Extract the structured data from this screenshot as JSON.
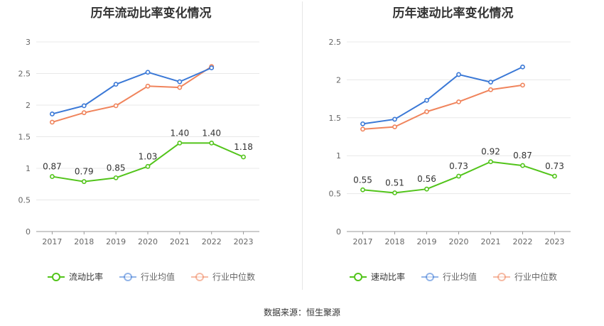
{
  "chart_data": [
    {
      "type": "line",
      "title": "历年流动比率变化情况",
      "categories": [
        "2017",
        "2018",
        "2019",
        "2020",
        "2021",
        "2022",
        "2023"
      ],
      "ylim": [
        0,
        3
      ],
      "yticks": [
        "0",
        "0.5",
        "1",
        "1.5",
        "2",
        "2.5",
        "3"
      ],
      "grid": true,
      "legend_position": "bottom",
      "series": [
        {
          "name": "流动比率",
          "color": "#52c41a",
          "values": [
            0.87,
            0.79,
            0.85,
            1.03,
            1.4,
            1.4,
            1.18
          ],
          "labels": [
            "0.87",
            "0.79",
            "0.85",
            "1.03",
            "1.40",
            "1.40",
            "1.18"
          ]
        },
        {
          "name": "行业均值",
          "color": "#3a78d6",
          "values": [
            1.86,
            1.99,
            2.33,
            2.52,
            2.37,
            2.59,
            null
          ]
        },
        {
          "name": "行业中位数",
          "color": "#f0845c",
          "values": [
            1.73,
            1.88,
            1.99,
            2.3,
            2.28,
            2.61,
            null
          ]
        }
      ]
    },
    {
      "type": "line",
      "title": "历年速动比率变化情况",
      "categories": [
        "2017",
        "2018",
        "2019",
        "2020",
        "2021",
        "2022",
        "2023"
      ],
      "ylim": [
        0,
        2.5
      ],
      "yticks": [
        "0",
        "0.5",
        "1",
        "1.5",
        "2",
        "2.5"
      ],
      "grid": true,
      "legend_position": "bottom",
      "series": [
        {
          "name": "速动比率",
          "color": "#52c41a",
          "values": [
            0.55,
            0.51,
            0.56,
            0.73,
            0.92,
            0.87,
            0.73
          ],
          "labels": [
            "0.55",
            "0.51",
            "0.56",
            "0.73",
            "0.92",
            "0.87",
            "0.73"
          ]
        },
        {
          "name": "行业均值",
          "color": "#3a78d6",
          "values": [
            1.42,
            1.48,
            1.73,
            2.07,
            1.97,
            2.17,
            null
          ]
        },
        {
          "name": "行业中位数",
          "color": "#f0845c",
          "values": [
            1.35,
            1.38,
            1.58,
            1.71,
            1.87,
            1.93,
            null
          ]
        }
      ]
    }
  ],
  "footer": {
    "source": "数据来源：恒生聚源"
  }
}
